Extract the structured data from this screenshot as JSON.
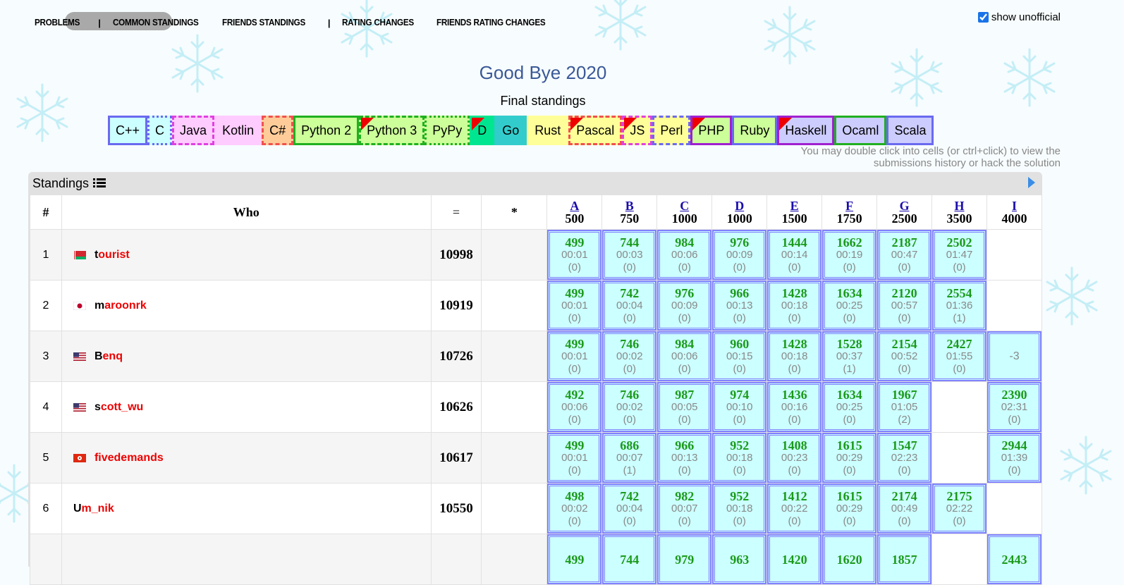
{
  "nav": {
    "items": [
      "PROBLEMS",
      "|",
      "COMMON STANDINGS",
      "FRIENDS STANDINGS",
      "|",
      "RATING CHANGES",
      "FRIENDS RATING CHANGES"
    ]
  },
  "show_unofficial": {
    "label": "show unofficial",
    "checked": true
  },
  "title": "Good Bye 2020",
  "subtitle": "Final standings",
  "languages": [
    {
      "name": "C++",
      "bg": "#ccffff",
      "border": "#6a6af0",
      "style": "solid",
      "flag": false
    },
    {
      "name": "C",
      "bg": "#ccffff",
      "border": "#6a6af0",
      "style": "dotted",
      "flag": false
    },
    {
      "name": "Java",
      "bg": "#ffccff",
      "border": "#e040e0",
      "style": "dashed",
      "flag": false
    },
    {
      "name": "Kotlin",
      "bg": "#ffccff",
      "border": "#ffccff",
      "style": "solid",
      "flag": false
    },
    {
      "name": "C#",
      "bg": "#ffcc99",
      "border": "#f05050",
      "style": "dashed",
      "flag": false
    },
    {
      "name": "Python 2",
      "bg": "#ccff99",
      "border": "#20b020",
      "style": "solid",
      "flag": false
    },
    {
      "name": "Python 3",
      "bg": "#ccff99",
      "border": "#20b020",
      "style": "dashed",
      "flag": true
    },
    {
      "name": "PyPy",
      "bg": "#ccff99",
      "border": "#20b020",
      "style": "dotted",
      "flag": false
    },
    {
      "name": "D",
      "bg": "#00e690",
      "border": "#00e690",
      "style": "solid",
      "flag": true
    },
    {
      "name": "Go",
      "bg": "#33cccc",
      "border": "#33cccc",
      "style": "solid",
      "flag": false
    },
    {
      "name": "Rust",
      "bg": "#ffff99",
      "border": "#ffff99",
      "style": "solid",
      "flag": false
    },
    {
      "name": "Pascal",
      "bg": "#ffff99",
      "border": "#f05050",
      "style": "dashed",
      "flag": true
    },
    {
      "name": "JS",
      "bg": "#ffff99",
      "border": "#e040e0",
      "style": "dashed",
      "flag": true
    },
    {
      "name": "Perl",
      "bg": "#ffff99",
      "border": "#6a6af0",
      "style": "dashed",
      "flag": false
    },
    {
      "name": "PHP",
      "bg": "#ccff99",
      "border": "#a020d0",
      "style": "solid",
      "flag": true
    },
    {
      "name": "Ruby",
      "bg": "#ccff99",
      "border": "#6a6af0",
      "style": "solid",
      "flag": false
    },
    {
      "name": "Haskell",
      "bg": "#ccccff",
      "border": "#a020d0",
      "style": "solid",
      "flag": true
    },
    {
      "name": "Ocaml",
      "bg": "#ccccff",
      "border": "#20b020",
      "style": "solid",
      "flag": false
    },
    {
      "name": "Scala",
      "bg": "#ccccff",
      "border": "#6a6af0",
      "style": "solid",
      "flag": false
    }
  ],
  "hint": [
    "You may double click into cells (or ctrl+click) to view the",
    "submissions history or hack the solution"
  ],
  "standings": {
    "label": "Standings",
    "headers": {
      "rank": "#",
      "who": "Who",
      "points": "=",
      "penalty": "*"
    },
    "problems": [
      {
        "letter": "A",
        "score": "500"
      },
      {
        "letter": "B",
        "score": "750"
      },
      {
        "letter": "C",
        "score": "1000"
      },
      {
        "letter": "D",
        "score": "1000"
      },
      {
        "letter": "E",
        "score": "1500"
      },
      {
        "letter": "F",
        "score": "1750"
      },
      {
        "letter": "G",
        "score": "2500"
      },
      {
        "letter": "H",
        "score": "3500"
      },
      {
        "letter": "I",
        "score": "4000"
      }
    ],
    "rows": [
      {
        "rank": "1",
        "first": "t",
        "rest": "ourist",
        "flag": "by",
        "points": "10998",
        "penalty": "",
        "cells": [
          [
            "499",
            "00:01",
            "(0)"
          ],
          [
            "744",
            "00:03",
            "(0)"
          ],
          [
            "984",
            "00:06",
            "(0)"
          ],
          [
            "976",
            "00:09",
            "(0)"
          ],
          [
            "1444",
            "00:14",
            "(0)"
          ],
          [
            "1662",
            "00:19",
            "(0)"
          ],
          [
            "2187",
            "00:47",
            "(0)"
          ],
          [
            "2502",
            "01:47",
            "(0)"
          ],
          null
        ]
      },
      {
        "rank": "2",
        "first": "m",
        "rest": "aroonrk",
        "flag": "jp",
        "points": "10919",
        "penalty": "",
        "cells": [
          [
            "499",
            "00:01",
            "(0)"
          ],
          [
            "742",
            "00:04",
            "(0)"
          ],
          [
            "976",
            "00:09",
            "(0)"
          ],
          [
            "966",
            "00:13",
            "(0)"
          ],
          [
            "1428",
            "00:18",
            "(0)"
          ],
          [
            "1634",
            "00:25",
            "(0)"
          ],
          [
            "2120",
            "00:57",
            "(0)"
          ],
          [
            "2554",
            "01:36",
            "(1)"
          ],
          null
        ]
      },
      {
        "rank": "3",
        "first": "B",
        "rest": "enq",
        "flag": "us",
        "points": "10726",
        "penalty": "",
        "cells": [
          [
            "499",
            "00:01",
            "(0)"
          ],
          [
            "746",
            "00:02",
            "(0)"
          ],
          [
            "984",
            "00:06",
            "(0)"
          ],
          [
            "960",
            "00:15",
            "(0)"
          ],
          [
            "1428",
            "00:18",
            "(0)"
          ],
          [
            "1528",
            "00:37",
            "(1)"
          ],
          [
            "2154",
            "00:52",
            "(0)"
          ],
          [
            "2427",
            "01:55",
            "(0)"
          ],
          "-3"
        ]
      },
      {
        "rank": "4",
        "first": "s",
        "rest": "cott_wu",
        "flag": "us",
        "points": "10626",
        "penalty": "",
        "cells": [
          [
            "492",
            "00:06",
            "(0)"
          ],
          [
            "746",
            "00:02",
            "(0)"
          ],
          [
            "987",
            "00:05",
            "(0)"
          ],
          [
            "974",
            "00:10",
            "(0)"
          ],
          [
            "1436",
            "00:16",
            "(0)"
          ],
          [
            "1634",
            "00:25",
            "(0)"
          ],
          [
            "1967",
            "01:05",
            "(2)"
          ],
          null,
          [
            "2390",
            "02:31",
            "(0)"
          ]
        ]
      },
      {
        "rank": "5",
        "first": "",
        "rest": "fivedemands",
        "flag": "hk",
        "points": "10617",
        "penalty": "",
        "cells": [
          [
            "499",
            "00:01",
            "(0)"
          ],
          [
            "686",
            "00:07",
            "(1)"
          ],
          [
            "966",
            "00:13",
            "(0)"
          ],
          [
            "952",
            "00:18",
            "(0)"
          ],
          [
            "1408",
            "00:23",
            "(0)"
          ],
          [
            "1615",
            "00:29",
            "(0)"
          ],
          [
            "1547",
            "02:23",
            "(0)"
          ],
          null,
          [
            "2944",
            "01:39",
            "(0)"
          ]
        ]
      },
      {
        "rank": "6",
        "first": "U",
        "rest": "m_nik",
        "flag": "",
        "points": "10550",
        "penalty": "",
        "cells": [
          [
            "498",
            "00:02",
            "(0)"
          ],
          [
            "742",
            "00:04",
            "(0)"
          ],
          [
            "982",
            "00:07",
            "(0)"
          ],
          [
            "952",
            "00:18",
            "(0)"
          ],
          [
            "1412",
            "00:22",
            "(0)"
          ],
          [
            "1615",
            "00:29",
            "(0)"
          ],
          [
            "2174",
            "00:49",
            "(0)"
          ],
          [
            "2175",
            "02:22",
            "(0)"
          ],
          null
        ]
      },
      {
        "rank": "",
        "first": "",
        "rest": "",
        "flag": "",
        "points": "",
        "penalty": "",
        "cells": [
          [
            "499",
            "",
            ""
          ],
          [
            "744",
            "",
            ""
          ],
          [
            "979",
            "",
            ""
          ],
          [
            "963",
            "",
            ""
          ],
          [
            "1420",
            "",
            ""
          ],
          [
            "1620",
            "",
            ""
          ],
          [
            "1857",
            "",
            ""
          ],
          null,
          [
            "2443",
            "",
            ""
          ]
        ]
      }
    ]
  }
}
